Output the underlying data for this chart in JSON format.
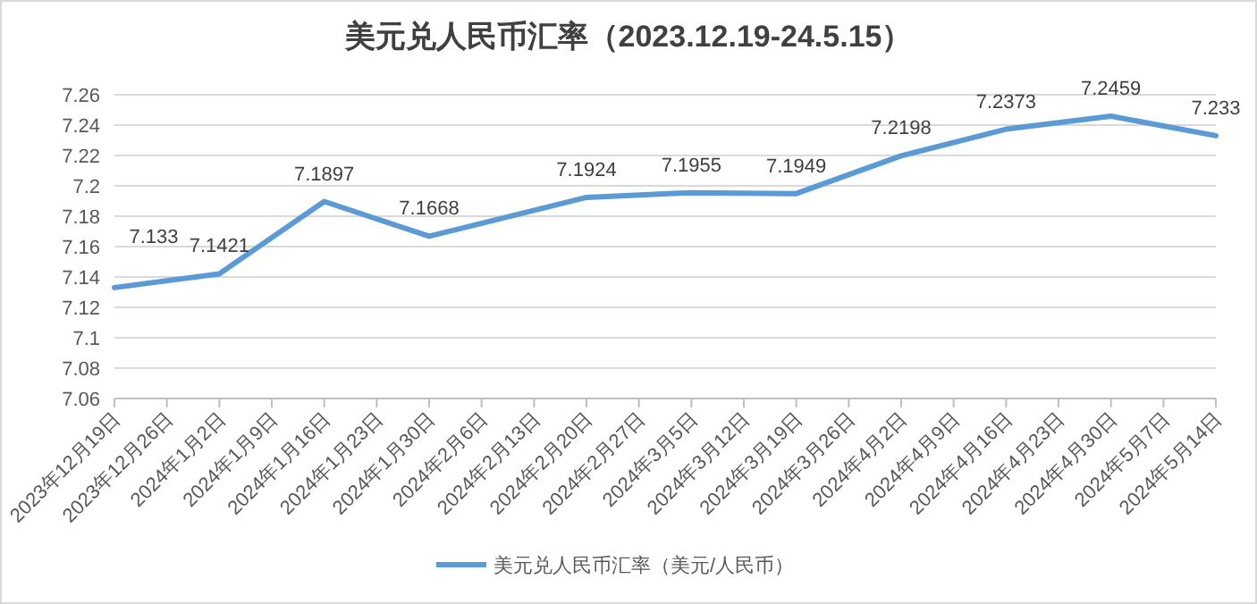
{
  "chart_data": {
    "type": "line",
    "title": "美元兑人民币汇率（2023.12.19-24.5.15）",
    "categories": [
      "2023年12月19日",
      "2023年12月26日",
      "2024年1月2日",
      "2024年1月9日",
      "2024年1月16日",
      "2024年1月23日",
      "2024年1月30日",
      "2024年2月6日",
      "2024年2月13日",
      "2024年2月20日",
      "2024年2月27日",
      "2024年3月5日",
      "2024年3月12日",
      "2024年3月19日",
      "2024年3月26日",
      "2024年4月2日",
      "2024年4月9日",
      "2024年4月16日",
      "2024年4月23日",
      "2024年4月30日",
      "2024年5月7日",
      "2024年5月14日"
    ],
    "series": [
      {
        "name": "美元兑人民币汇率（美元/人民币）",
        "color": "#5b9bd5",
        "values": [
          7.133,
          null,
          7.1421,
          null,
          7.1897,
          null,
          7.1668,
          null,
          null,
          7.1924,
          null,
          7.1955,
          null,
          7.1949,
          null,
          7.2198,
          null,
          7.2373,
          null,
          7.2459,
          null,
          7.233
        ]
      }
    ],
    "ylim": [
      7.06,
      7.26
    ],
    "yticks": [
      7.06,
      7.08,
      {
        "value": 7.1,
        "label": "7.1"
      },
      7.12,
      7.14,
      7.16,
      7.18,
      {
        "value": 7.2,
        "label": "7.2"
      },
      7.22,
      7.24,
      7.26
    ],
    "grid": "y",
    "legend": "bottom",
    "data_labels": true,
    "marker": "none",
    "line_style": "solid"
  }
}
